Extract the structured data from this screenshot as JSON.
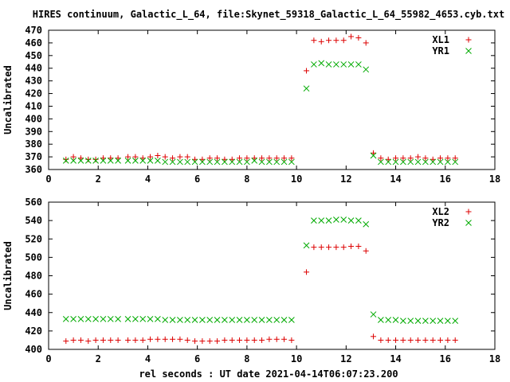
{
  "title": "HIRES continuum, Galactic_L_64, file:Skynet_59318_Galactic_L_64_55982_4653.cyb.txt",
  "xlabel": "rel seconds : UT date 2021-04-14T06:07:23.200",
  "colors": {
    "red": "#dd0000",
    "green": "#00aa00",
    "axis": "#000000"
  },
  "chart_data": [
    {
      "type": "scatter",
      "ylabel": "Uncalibrated",
      "xlim": [
        0,
        18
      ],
      "ylim": [
        360,
        470
      ],
      "xticks": [
        0,
        2,
        4,
        6,
        8,
        10,
        12,
        14,
        16,
        18
      ],
      "yticks": [
        360,
        370,
        380,
        390,
        400,
        410,
        420,
        430,
        440,
        450,
        460,
        470
      ],
      "legend_position": "top-right",
      "series": [
        {
          "name": "XL1",
          "marker": "plus",
          "color": "#dd0000",
          "x": [
            0.7,
            1.0,
            1.3,
            1.6,
            1.9,
            2.2,
            2.5,
            2.8,
            3.2,
            3.5,
            3.8,
            4.1,
            4.4,
            4.7,
            5.0,
            5.3,
            5.6,
            5.9,
            6.2,
            6.5,
            6.8,
            7.1,
            7.4,
            7.7,
            8.0,
            8.3,
            8.6,
            8.9,
            9.2,
            9.5,
            9.8,
            10.4,
            10.7,
            11.0,
            11.3,
            11.6,
            11.9,
            12.2,
            12.5,
            12.8,
            13.1,
            13.4,
            13.7,
            14.0,
            14.3,
            14.6,
            14.9,
            15.2,
            15.5,
            15.8,
            16.1,
            16.4
          ],
          "y": [
            368,
            370,
            369,
            368,
            368,
            369,
            369,
            369,
            370,
            370,
            369,
            370,
            371,
            370,
            369,
            370,
            370,
            368,
            368,
            369,
            369,
            368,
            368,
            369,
            369,
            369,
            369,
            369,
            369,
            369,
            369,
            438,
            462,
            461,
            462,
            462,
            462,
            465,
            464,
            460,
            373,
            369,
            368,
            369,
            369,
            369,
            370,
            369,
            368,
            369,
            369,
            369
          ]
        },
        {
          "name": "YR1",
          "marker": "cross",
          "color": "#00aa00",
          "x": [
            0.7,
            1.0,
            1.3,
            1.6,
            1.9,
            2.2,
            2.5,
            2.8,
            3.2,
            3.5,
            3.8,
            4.1,
            4.4,
            4.7,
            5.0,
            5.3,
            5.6,
            5.9,
            6.2,
            6.5,
            6.8,
            7.1,
            7.4,
            7.7,
            8.0,
            8.3,
            8.6,
            8.9,
            9.2,
            9.5,
            9.8,
            10.4,
            10.7,
            11.0,
            11.3,
            11.6,
            11.9,
            12.2,
            12.5,
            12.8,
            13.1,
            13.4,
            13.7,
            14.0,
            14.3,
            14.6,
            14.9,
            15.2,
            15.5,
            15.8,
            16.1,
            16.4
          ],
          "y": [
            367,
            367,
            367,
            367,
            367,
            367,
            367,
            367,
            367,
            367,
            367,
            367,
            367,
            366,
            366,
            366,
            366,
            366,
            366,
            366,
            366,
            366,
            366,
            366,
            366,
            367,
            366,
            366,
            366,
            366,
            366,
            424,
            443,
            444,
            443,
            443,
            443,
            443,
            443,
            439,
            371,
            366,
            366,
            366,
            366,
            366,
            366,
            366,
            366,
            366,
            366,
            366
          ]
        }
      ]
    },
    {
      "type": "scatter",
      "ylabel": "Uncalibrated",
      "xlim": [
        0,
        18
      ],
      "ylim": [
        400,
        560
      ],
      "xticks": [
        0,
        2,
        4,
        6,
        8,
        10,
        12,
        14,
        16,
        18
      ],
      "yticks": [
        400,
        420,
        440,
        460,
        480,
        500,
        520,
        540,
        560
      ],
      "legend_position": "top-right",
      "series": [
        {
          "name": "XL2",
          "marker": "plus",
          "color": "#dd0000",
          "x": [
            0.7,
            1.0,
            1.3,
            1.6,
            1.9,
            2.2,
            2.5,
            2.8,
            3.2,
            3.5,
            3.8,
            4.1,
            4.4,
            4.7,
            5.0,
            5.3,
            5.6,
            5.9,
            6.2,
            6.5,
            6.8,
            7.1,
            7.4,
            7.7,
            8.0,
            8.3,
            8.6,
            8.9,
            9.2,
            9.5,
            9.8,
            10.4,
            10.7,
            11.0,
            11.3,
            11.6,
            11.9,
            12.2,
            12.5,
            12.8,
            13.1,
            13.4,
            13.7,
            14.0,
            14.3,
            14.6,
            14.9,
            15.2,
            15.5,
            15.8,
            16.1,
            16.4
          ],
          "y": [
            409,
            410,
            410,
            409,
            410,
            410,
            410,
            410,
            410,
            410,
            410,
            411,
            411,
            411,
            411,
            411,
            410,
            409,
            409,
            409,
            409,
            410,
            410,
            410,
            410,
            410,
            410,
            411,
            411,
            411,
            410,
            484,
            511,
            511,
            511,
            511,
            511,
            512,
            512,
            507,
            414,
            410,
            410,
            410,
            410,
            410,
            410,
            410,
            410,
            410,
            410,
            410
          ]
        },
        {
          "name": "YR2",
          "marker": "cross",
          "color": "#00aa00",
          "x": [
            0.7,
            1.0,
            1.3,
            1.6,
            1.9,
            2.2,
            2.5,
            2.8,
            3.2,
            3.5,
            3.8,
            4.1,
            4.4,
            4.7,
            5.0,
            5.3,
            5.6,
            5.9,
            6.2,
            6.5,
            6.8,
            7.1,
            7.4,
            7.7,
            8.0,
            8.3,
            8.6,
            8.9,
            9.2,
            9.5,
            9.8,
            10.4,
            10.7,
            11.0,
            11.3,
            11.6,
            11.9,
            12.2,
            12.5,
            12.8,
            13.1,
            13.4,
            13.7,
            14.0,
            14.3,
            14.6,
            14.9,
            15.2,
            15.5,
            15.8,
            16.1,
            16.4
          ],
          "y": [
            433,
            433,
            433,
            433,
            433,
            433,
            433,
            433,
            433,
            433,
            433,
            433,
            433,
            432,
            432,
            432,
            432,
            432,
            432,
            432,
            432,
            432,
            432,
            432,
            432,
            432,
            432,
            432,
            432,
            432,
            432,
            513,
            540,
            540,
            540,
            541,
            541,
            540,
            540,
            536,
            438,
            432,
            432,
            432,
            431,
            431,
            431,
            431,
            431,
            431,
            431,
            431
          ]
        }
      ]
    }
  ]
}
